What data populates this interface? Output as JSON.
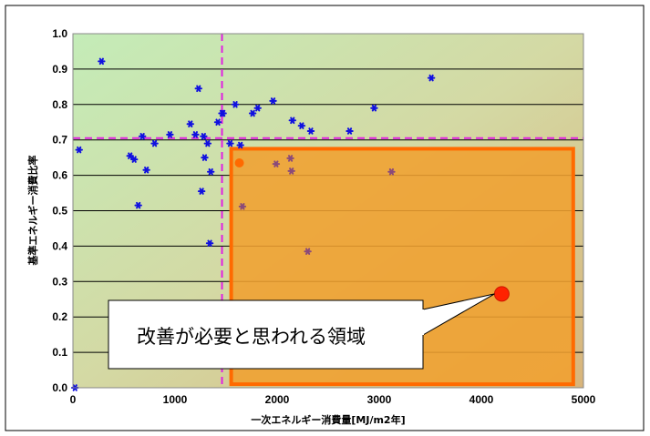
{
  "chart_data": {
    "type": "scatter",
    "xlabel": "一次エネルギー消費量[MJ/m2年]",
    "ylabel": "基準エネルギー消費比率",
    "xlim": [
      0,
      5000
    ],
    "ylim": [
      0,
      1.0
    ],
    "x_ticks": [
      "0",
      "1000",
      "2000",
      "3000",
      "4000",
      "5000"
    ],
    "y_ticks": [
      "0.0",
      "0.1",
      "0.2",
      "0.3",
      "0.4",
      "0.5",
      "0.6",
      "0.7",
      "0.8",
      "0.9",
      "1.0"
    ],
    "grid": "horizontal",
    "background": "gradient green to tan",
    "reference_lines": {
      "x": 1460,
      "y": 0.705,
      "color": "#e020e0"
    },
    "highlight_region": {
      "x": [
        1550,
        4900
      ],
      "y": [
        0.01,
        0.675
      ],
      "fill": "#f0a030",
      "stroke": "#ff6a00"
    },
    "series": [
      {
        "color": "#1010e0",
        "points": [
          [
            20,
            0.0
          ],
          [
            60,
            0.672
          ],
          [
            280,
            0.922
          ],
          [
            560,
            0.655
          ],
          [
            600,
            0.645
          ],
          [
            640,
            0.515
          ],
          [
            680,
            0.71
          ],
          [
            720,
            0.615
          ],
          [
            800,
            0.69
          ],
          [
            950,
            0.715
          ],
          [
            1150,
            0.745
          ],
          [
            1200,
            0.715
          ],
          [
            1230,
            0.845
          ],
          [
            1260,
            0.555
          ],
          [
            1280,
            0.71
          ],
          [
            1290,
            0.65
          ],
          [
            1320,
            0.69
          ],
          [
            1340,
            0.408
          ],
          [
            1350,
            0.61
          ],
          [
            1420,
            0.75
          ],
          [
            1460,
            0.775
          ],
          [
            1470,
            0.775
          ],
          [
            1540,
            0.69
          ],
          [
            1590,
            0.8
          ],
          [
            1640,
            0.685
          ],
          [
            1760,
            0.775
          ],
          [
            1810,
            0.79
          ],
          [
            1960,
            0.81
          ],
          [
            2150,
            0.755
          ],
          [
            2240,
            0.74
          ],
          [
            2330,
            0.725
          ],
          [
            2710,
            0.725
          ],
          [
            2950,
            0.79
          ],
          [
            3510,
            0.875
          ]
        ]
      },
      {
        "color": "#8a4a7a",
        "points": [
          [
            1660,
            0.512
          ],
          [
            1990,
            0.632
          ],
          [
            2130,
            0.648
          ],
          [
            2140,
            0.612
          ],
          [
            2300,
            0.385
          ],
          [
            3120,
            0.61
          ]
        ]
      }
    ],
    "highlighted_points": [
      {
        "x": 1630,
        "y": 0.635,
        "color": "#ff6a00"
      },
      {
        "x": 4200,
        "y": 0.265,
        "color": "#ff2200"
      }
    ],
    "annotation": {
      "text": "改善が必要と思われる領域",
      "points_to": [
        4200,
        0.265
      ]
    }
  }
}
